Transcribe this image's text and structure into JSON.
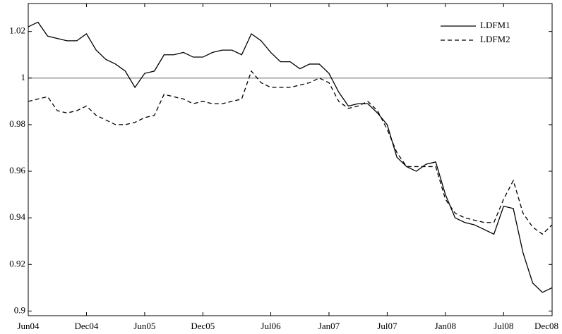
{
  "chart_data": {
    "type": "line",
    "x": [
      0,
      1,
      2,
      3,
      4,
      5,
      6,
      7,
      8,
      9,
      10,
      11,
      12,
      13,
      14,
      15,
      16,
      17,
      18,
      19,
      20,
      21,
      22,
      23,
      24,
      25,
      26,
      27,
      28,
      29,
      30,
      31,
      32,
      33,
      34,
      35,
      36,
      37,
      38,
      39,
      40,
      41,
      42,
      43,
      44,
      45,
      46,
      47,
      48,
      49,
      50,
      51,
      52,
      53,
      54
    ],
    "series": [
      {
        "name": "LDFM1",
        "color": "#000000",
        "dash": false,
        "values": [
          1.022,
          1.024,
          1.018,
          1.017,
          1.016,
          1.016,
          1.019,
          1.012,
          1.008,
          1.006,
          1.003,
          0.996,
          1.002,
          1.003,
          1.01,
          1.01,
          1.011,
          1.009,
          1.009,
          1.011,
          1.012,
          1.012,
          1.01,
          1.019,
          1.016,
          1.011,
          1.007,
          1.007,
          1.004,
          1.006,
          1.006,
          1.002,
          0.994,
          0.988,
          0.989,
          0.989,
          0.985,
          0.98,
          0.966,
          0.962,
          0.96,
          0.963,
          0.964,
          0.95,
          0.94,
          0.938,
          0.937,
          0.935,
          0.933,
          0.945,
          0.944,
          0.925,
          0.912,
          0.908,
          0.91
        ]
      },
      {
        "name": "LDFM2",
        "color": "#000000",
        "dash": true,
        "values": [
          0.99,
          0.991,
          0.992,
          0.986,
          0.985,
          0.986,
          0.988,
          0.984,
          0.982,
          0.98,
          0.98,
          0.981,
          0.983,
          0.984,
          0.993,
          0.992,
          0.991,
          0.989,
          0.99,
          0.989,
          0.989,
          0.99,
          0.991,
          1.003,
          0.998,
          0.996,
          0.996,
          0.996,
          0.997,
          0.998,
          1.0,
          0.998,
          0.99,
          0.987,
          0.988,
          0.99,
          0.986,
          0.978,
          0.968,
          0.962,
          0.962,
          0.962,
          0.962,
          0.948,
          0.942,
          0.94,
          0.939,
          0.938,
          0.938,
          0.948,
          0.956,
          0.942,
          0.936,
          0.933,
          0.937
        ]
      }
    ],
    "xlim": [
      0,
      54
    ],
    "xticks": [
      {
        "value": 0,
        "label": "Jun04"
      },
      {
        "value": 6,
        "label": "Dec04"
      },
      {
        "value": 12,
        "label": "Jun05"
      },
      {
        "value": 18,
        "label": "Dec05"
      },
      {
        "value": 25,
        "label": "Jul06"
      },
      {
        "value": 31,
        "label": "Jan07"
      },
      {
        "value": 37,
        "label": "Jul07"
      },
      {
        "value": 43,
        "label": "Jan08"
      },
      {
        "value": 49,
        "label": "Jul08"
      },
      {
        "value": 54,
        "label": "Dec08"
      }
    ],
    "ylim": [
      0.898,
      1.032
    ],
    "yticks": [
      0.9,
      0.92,
      0.94,
      0.96,
      0.98,
      1,
      1.02
    ],
    "reference_line": {
      "value": 1,
      "color": "#999999"
    },
    "legend": "top-right"
  }
}
